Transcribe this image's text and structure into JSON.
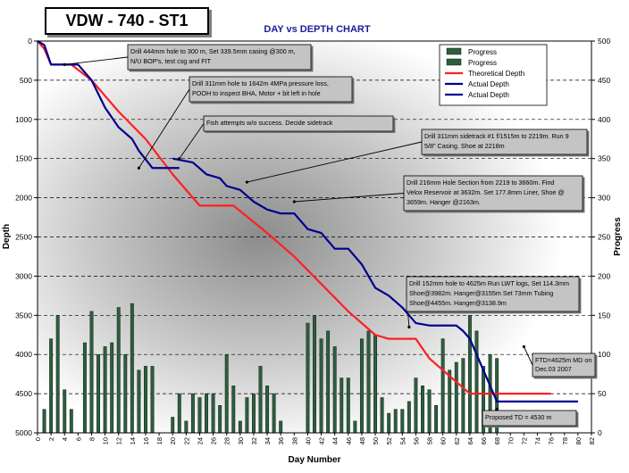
{
  "chart_data": {
    "type": "bar+line",
    "header_box": "VDW - 740 - ST1",
    "title": "DAY vs DEPTH  CHART",
    "xlabel": "Day Number",
    "ylabel_left": "Depth",
    "ylabel_right": "Progress",
    "xlim": [
      0,
      82
    ],
    "ylim_left": [
      0,
      5000
    ],
    "ylim_left_inverted": true,
    "ylim_right": [
      0,
      500
    ],
    "x_ticks": [
      0,
      2,
      4,
      6,
      8,
      10,
      12,
      14,
      16,
      18,
      20,
      22,
      24,
      26,
      28,
      30,
      32,
      34,
      36,
      38,
      40,
      42,
      44,
      46,
      48,
      50,
      52,
      54,
      56,
      58,
      60,
      62,
      64,
      66,
      68,
      70,
      72,
      74,
      76,
      78,
      80,
      82
    ],
    "y_left_ticks": [
      0,
      500,
      1000,
      1500,
      2000,
      2500,
      3000,
      3500,
      4000,
      4500,
      5000
    ],
    "y_right_ticks": [
      0,
      50,
      100,
      150,
      200,
      250,
      300,
      350,
      400,
      450,
      500
    ],
    "grid": "horizontal dashed",
    "legend_position": "top-right",
    "legend": [
      {
        "label": "Progress",
        "kind": "bar",
        "color": "#2e5e3e"
      },
      {
        "label": "Progress",
        "kind": "bar",
        "color": "#2e5e3e"
      },
      {
        "label": "Theoretical Depth",
        "kind": "line",
        "color": "#ff2020"
      },
      {
        "label": "Actual Depth",
        "kind": "line",
        "color": "#000090"
      },
      {
        "label": "Actual Depth",
        "kind": "line",
        "color": "#000090"
      }
    ],
    "bars_progress": [
      {
        "x": 1,
        "y": 30
      },
      {
        "x": 2,
        "y": 120
      },
      {
        "x": 3,
        "y": 150
      },
      {
        "x": 4,
        "y": 55
      },
      {
        "x": 5,
        "y": 30
      },
      {
        "x": 7,
        "y": 115
      },
      {
        "x": 8,
        "y": 155
      },
      {
        "x": 9,
        "y": 100
      },
      {
        "x": 10,
        "y": 110
      },
      {
        "x": 11,
        "y": 115
      },
      {
        "x": 12,
        "y": 160
      },
      {
        "x": 13,
        "y": 100
      },
      {
        "x": 14,
        "y": 165
      },
      {
        "x": 15,
        "y": 80
      },
      {
        "x": 16,
        "y": 85
      },
      {
        "x": 17,
        "y": 85
      },
      {
        "x": 20,
        "y": 20
      },
      {
        "x": 21,
        "y": 50
      },
      {
        "x": 22,
        "y": 15
      },
      {
        "x": 23,
        "y": 50
      },
      {
        "x": 24,
        "y": 45
      },
      {
        "x": 25,
        "y": 50
      },
      {
        "x": 26,
        "y": 50
      },
      {
        "x": 27,
        "y": 35
      },
      {
        "x": 28,
        "y": 100
      },
      {
        "x": 29,
        "y": 60
      },
      {
        "x": 30,
        "y": 15
      },
      {
        "x": 31,
        "y": 45
      },
      {
        "x": 32,
        "y": 50
      },
      {
        "x": 33,
        "y": 85
      },
      {
        "x": 34,
        "y": 60
      },
      {
        "x": 35,
        "y": 50
      },
      {
        "x": 36,
        "y": 15
      },
      {
        "x": 40,
        "y": 140
      },
      {
        "x": 41,
        "y": 150
      },
      {
        "x": 42,
        "y": 120
      },
      {
        "x": 43,
        "y": 130
      },
      {
        "x": 44,
        "y": 110
      },
      {
        "x": 45,
        "y": 70
      },
      {
        "x": 46,
        "y": 70
      },
      {
        "x": 47,
        "y": 15
      },
      {
        "x": 48,
        "y": 120
      },
      {
        "x": 49,
        "y": 130
      },
      {
        "x": 50,
        "y": 125
      },
      {
        "x": 51,
        "y": 45
      },
      {
        "x": 52,
        "y": 25
      },
      {
        "x": 53,
        "y": 30
      },
      {
        "x": 54,
        "y": 30
      },
      {
        "x": 55,
        "y": 40
      },
      {
        "x": 56,
        "y": 70
      },
      {
        "x": 57,
        "y": 60
      },
      {
        "x": 58,
        "y": 55
      },
      {
        "x": 59,
        "y": 35
      },
      {
        "x": 60,
        "y": 120
      },
      {
        "x": 61,
        "y": 80
      },
      {
        "x": 62,
        "y": 90
      },
      {
        "x": 63,
        "y": 95
      },
      {
        "x": 64,
        "y": 150
      },
      {
        "x": 65,
        "y": 130
      },
      {
        "x": 66,
        "y": 85
      },
      {
        "x": 67,
        "y": 100
      },
      {
        "x": 68,
        "y": 95
      }
    ],
    "series": [
      {
        "name": "Theoretical Depth",
        "color": "#ff2020",
        "points": [
          [
            0,
            0
          ],
          [
            1,
            100
          ],
          [
            2,
            300
          ],
          [
            3,
            300
          ],
          [
            5,
            300
          ],
          [
            8,
            500
          ],
          [
            12,
            900
          ],
          [
            16,
            1250
          ],
          [
            20,
            1700
          ],
          [
            24,
            2100
          ],
          [
            29,
            2100
          ],
          [
            34,
            2450
          ],
          [
            38,
            2750
          ],
          [
            42,
            3100
          ],
          [
            46,
            3450
          ],
          [
            50,
            3750
          ],
          [
            52,
            3800
          ],
          [
            56,
            3800
          ],
          [
            58,
            4050
          ],
          [
            62,
            4350
          ],
          [
            64,
            4500
          ],
          [
            66,
            4500
          ],
          [
            76,
            4500
          ]
        ]
      },
      {
        "name": "Actual Depth",
        "color": "#000090",
        "points": [
          [
            0,
            0
          ],
          [
            1,
            50
          ],
          [
            2,
            300
          ],
          [
            6,
            300
          ],
          [
            8,
            500
          ],
          [
            10,
            850
          ],
          [
            12,
            1100
          ],
          [
            14,
            1250
          ],
          [
            15,
            1400
          ],
          [
            17,
            1620
          ],
          [
            21,
            1620
          ]
        ]
      },
      {
        "name": "Actual Depth",
        "color": "#000090",
        "points": [
          [
            20,
            1500
          ],
          [
            23,
            1550
          ],
          [
            25,
            1700
          ],
          [
            27,
            1750
          ],
          [
            28,
            1850
          ],
          [
            30,
            1900
          ],
          [
            32,
            2050
          ],
          [
            34,
            2150
          ],
          [
            36,
            2200
          ],
          [
            38,
            2200
          ],
          [
            39,
            2300
          ],
          [
            40,
            2400
          ],
          [
            42,
            2450
          ],
          [
            44,
            2650
          ],
          [
            46,
            2650
          ],
          [
            48,
            2850
          ],
          [
            50,
            3150
          ],
          [
            52,
            3250
          ],
          [
            54,
            3400
          ],
          [
            56,
            3600
          ],
          [
            58,
            3630
          ],
          [
            62,
            3630
          ],
          [
            63,
            3700
          ],
          [
            64,
            3800
          ],
          [
            65,
            4000
          ],
          [
            66,
            4200
          ],
          [
            67,
            4400
          ],
          [
            68,
            4600
          ],
          [
            80,
            4600
          ]
        ]
      }
    ],
    "annotations": [
      {
        "text": "Drill 444mm hole to 300 m, Set 339.5mm casing @300 m,  N/U BOP's, test csg and FIT",
        "target": [
          4,
          300
        ]
      },
      {
        "text": "Drill 311mm hole to 1642m 4MPa pressure loss, POOH to inspect BHA, Motor + bit left in hole",
        "target": [
          15,
          1620
        ]
      },
      {
        "text": "Fish attempts w/o success. Decide sidetrack",
        "target": [
          21,
          1500
        ]
      },
      {
        "text": "Drill 311mm sidetrack #1 f/1515m to 2219m. Run 9 5/8\" Casing. Shoe at 2218m",
        "target": [
          31,
          1800
        ]
      },
      {
        "text": "Drill 216mm Hole Section from 2219 to 3660m. Find Velox Reservoir at 3632m. Set 177.8mm Liner, Shoe  @ 3659m. Hanger @2163m.",
        "target": [
          38,
          2050
        ]
      },
      {
        "text": "Drill 152mm hole to 4625m Run LWT logs, Set 114.3mm Shoe@3982m. Hanger@3155m Set 73mm Tubing Shoe@4455m. Hanger@3138.9m",
        "target": [
          55,
          3650
        ]
      },
      {
        "text": "FTD=4625m MD on Dec.03 2007",
        "target": [
          72,
          3900
        ]
      },
      {
        "text": "Proposed TD = 4530 m",
        "target": [
          68,
          4700
        ]
      }
    ]
  }
}
